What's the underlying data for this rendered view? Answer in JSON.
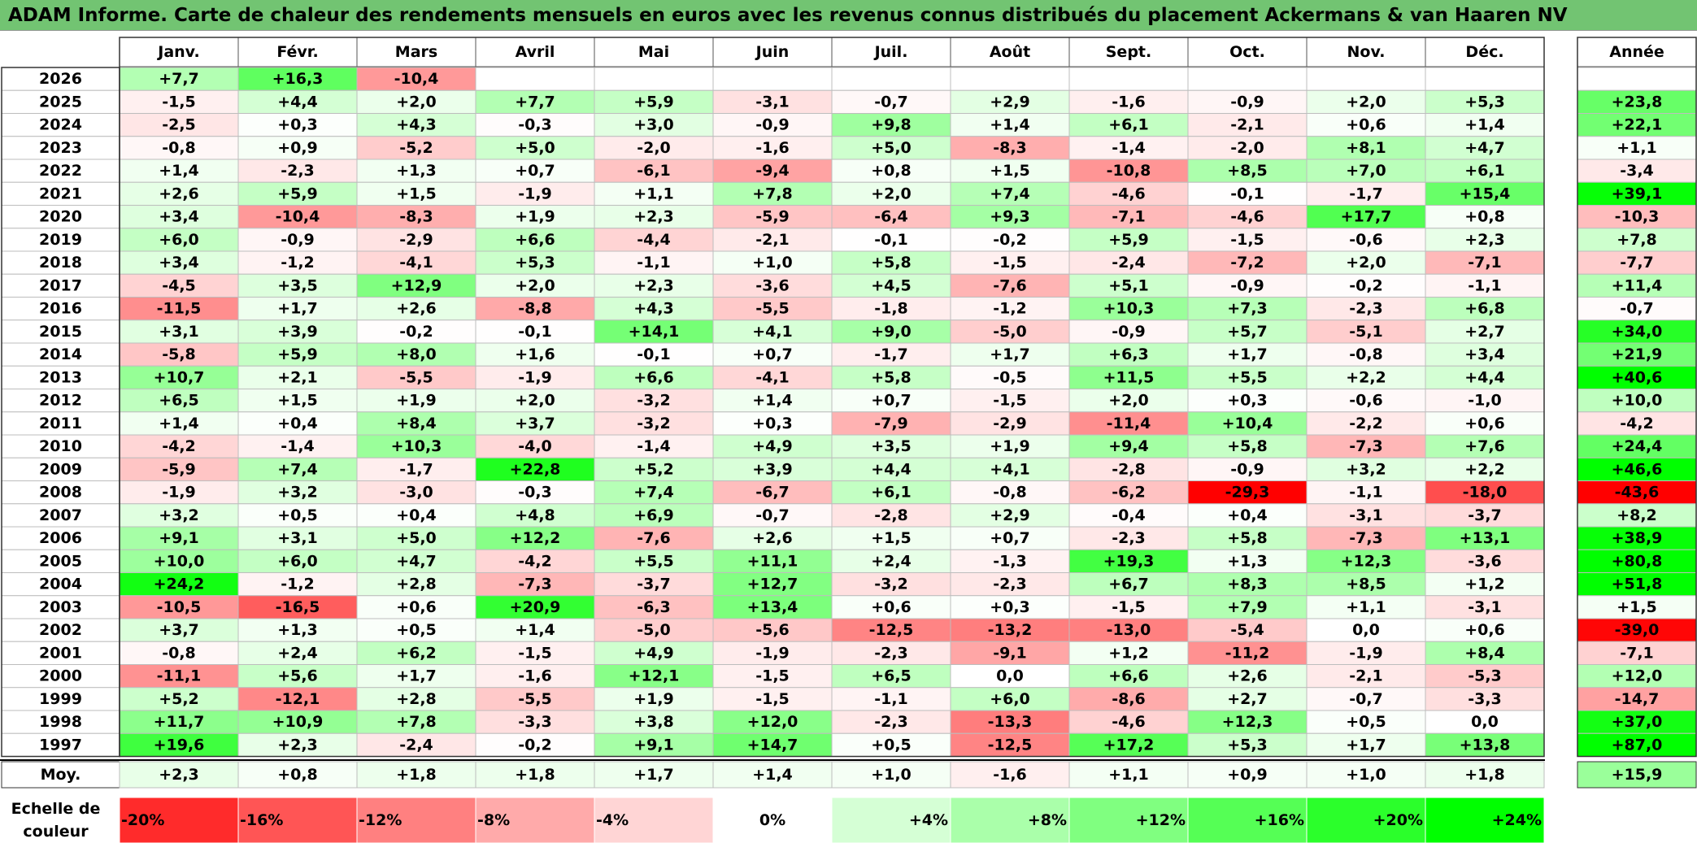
{
  "title": "ADAM Informe. Carte de chaleur des rendements mensuels en euros avec les revenus connus distribués du placement Ackermans & van Haaren NV",
  "chart_data": {
    "type": "heatmap",
    "title": "ADAM Informe. Carte de chaleur des rendements mensuels en euros avec les revenus connus distribués du placement Ackermans & van Haaren NV",
    "months": [
      "Janv.",
      "Févr.",
      "Mars",
      "Avril",
      "Mai",
      "Juin",
      "Juil.",
      "Août",
      "Sept.",
      "Oct.",
      "Nov.",
      "Déc."
    ],
    "year_header": "Année",
    "rows": [
      {
        "year": "2026",
        "values": [
          "+7,7",
          "+16,3",
          "-10,4",
          null,
          null,
          null,
          null,
          null,
          null,
          null,
          null,
          null
        ],
        "annual": null
      },
      {
        "year": "2025",
        "values": [
          "-1,5",
          "+4,4",
          "+2,0",
          "+7,7",
          "+5,9",
          "-3,1",
          "-0,7",
          "+2,9",
          "-1,6",
          "-0,9",
          "+2,0",
          "+5,3"
        ],
        "annual": "+23,8"
      },
      {
        "year": "2024",
        "values": [
          "-2,5",
          "+0,3",
          "+4,3",
          "-0,3",
          "+3,0",
          "-0,9",
          "+9,8",
          "+1,4",
          "+6,1",
          "-2,1",
          "+0,6",
          "+1,4"
        ],
        "annual": "+22,1"
      },
      {
        "year": "2023",
        "values": [
          "-0,8",
          "+0,9",
          "-5,2",
          "+5,0",
          "-2,0",
          "-1,6",
          "+5,0",
          "-8,3",
          "-1,4",
          "-2,0",
          "+8,1",
          "+4,7"
        ],
        "annual": "+1,1"
      },
      {
        "year": "2022",
        "values": [
          "+1,4",
          "-2,3",
          "+1,3",
          "+0,7",
          "-6,1",
          "-9,4",
          "+0,8",
          "+1,5",
          "-10,8",
          "+8,5",
          "+7,0",
          "+6,1"
        ],
        "annual": "-3,4"
      },
      {
        "year": "2021",
        "values": [
          "+2,6",
          "+5,9",
          "+1,5",
          "-1,9",
          "+1,1",
          "+7,8",
          "+2,0",
          "+7,4",
          "-4,6",
          "-0,1",
          "-1,7",
          "+15,4"
        ],
        "annual": "+39,1"
      },
      {
        "year": "2020",
        "values": [
          "+3,4",
          "-10,4",
          "-8,3",
          "+1,9",
          "+2,3",
          "-5,9",
          "-6,4",
          "+9,3",
          "-7,1",
          "-4,6",
          "+17,7",
          "+0,8"
        ],
        "annual": "-10,3"
      },
      {
        "year": "2019",
        "values": [
          "+6,0",
          "-0,9",
          "-2,9",
          "+6,6",
          "-4,4",
          "-2,1",
          "-0,1",
          "-0,2",
          "+5,9",
          "-1,5",
          "-0,6",
          "+2,3"
        ],
        "annual": "+7,8"
      },
      {
        "year": "2018",
        "values": [
          "+3,4",
          "-1,2",
          "-4,1",
          "+5,3",
          "-1,1",
          "+1,0",
          "+5,8",
          "-1,5",
          "-2,4",
          "-7,2",
          "+2,0",
          "-7,1"
        ],
        "annual": "-7,7"
      },
      {
        "year": "2017",
        "values": [
          "-4,5",
          "+3,5",
          "+12,9",
          "+2,0",
          "+2,3",
          "-3,6",
          "+4,5",
          "-7,6",
          "+5,1",
          "-0,9",
          "-0,2",
          "-1,1"
        ],
        "annual": "+11,4"
      },
      {
        "year": "2016",
        "values": [
          "-11,5",
          "+1,7",
          "+2,6",
          "-8,8",
          "+4,3",
          "-5,5",
          "-1,8",
          "-1,2",
          "+10,3",
          "+7,3",
          "-2,3",
          "+6,8"
        ],
        "annual": "-0,7"
      },
      {
        "year": "2015",
        "values": [
          "+3,1",
          "+3,9",
          "-0,2",
          "-0,1",
          "+14,1",
          "+4,1",
          "+9,0",
          "-5,0",
          "-0,9",
          "+5,7",
          "-5,1",
          "+2,7"
        ],
        "annual": "+34,0"
      },
      {
        "year": "2014",
        "values": [
          "-5,8",
          "+5,9",
          "+8,0",
          "+1,6",
          "-0,1",
          "+0,7",
          "-1,7",
          "+1,7",
          "+6,3",
          "+1,7",
          "-0,8",
          "+3,4"
        ],
        "annual": "+21,9"
      },
      {
        "year": "2013",
        "values": [
          "+10,7",
          "+2,1",
          "-5,5",
          "-1,9",
          "+6,6",
          "-4,1",
          "+5,8",
          "-0,5",
          "+11,5",
          "+5,5",
          "+2,2",
          "+4,4"
        ],
        "annual": "+40,6"
      },
      {
        "year": "2012",
        "values": [
          "+6,5",
          "+1,5",
          "+1,9",
          "+2,0",
          "-3,2",
          "+1,4",
          "+0,7",
          "-1,5",
          "+2,0",
          "+0,3",
          "-0,6",
          "-1,0"
        ],
        "annual": "+10,0"
      },
      {
        "year": "2011",
        "values": [
          "+1,4",
          "+0,4",
          "+8,4",
          "+3,7",
          "-3,2",
          "+0,3",
          "-7,9",
          "-2,9",
          "-11,4",
          "+10,4",
          "-2,2",
          "+0,6"
        ],
        "annual": "-4,2"
      },
      {
        "year": "2010",
        "values": [
          "-4,2",
          "-1,4",
          "+10,3",
          "-4,0",
          "-1,4",
          "+4,9",
          "+3,5",
          "+1,9",
          "+9,4",
          "+5,8",
          "-7,3",
          "+7,6"
        ],
        "annual": "+24,4"
      },
      {
        "year": "2009",
        "values": [
          "-5,9",
          "+7,4",
          "-1,7",
          "+22,8",
          "+5,2",
          "+3,9",
          "+4,4",
          "+4,1",
          "-2,8",
          "-0,9",
          "+3,2",
          "+2,2"
        ],
        "annual": "+46,6"
      },
      {
        "year": "2008",
        "values": [
          "-1,9",
          "+3,2",
          "-3,0",
          "-0,3",
          "+7,4",
          "-6,7",
          "+6,1",
          "-0,8",
          "-6,2",
          "-29,3",
          "-1,1",
          "-18,0"
        ],
        "annual": "-43,6"
      },
      {
        "year": "2007",
        "values": [
          "+3,2",
          "+0,5",
          "+0,4",
          "+4,8",
          "+6,9",
          "-0,7",
          "-2,8",
          "+2,9",
          "-0,4",
          "+0,4",
          "-3,1",
          "-3,7"
        ],
        "annual": "+8,2"
      },
      {
        "year": "2006",
        "values": [
          "+9,1",
          "+3,1",
          "+5,0",
          "+12,2",
          "-7,6",
          "+2,6",
          "+1,5",
          "+0,7",
          "-2,3",
          "+5,8",
          "-7,3",
          "+13,1"
        ],
        "annual": "+38,9"
      },
      {
        "year": "2005",
        "values": [
          "+10,0",
          "+6,0",
          "+4,7",
          "-4,2",
          "+5,5",
          "+11,1",
          "+2,4",
          "-1,3",
          "+19,3",
          "+1,3",
          "+12,3",
          "-3,6"
        ],
        "annual": "+80,8"
      },
      {
        "year": "2004",
        "values": [
          "+24,2",
          "-1,2",
          "+2,8",
          "-7,3",
          "-3,7",
          "+12,7",
          "-3,2",
          "-2,3",
          "+6,7",
          "+8,3",
          "+8,5",
          "+1,2"
        ],
        "annual": "+51,8"
      },
      {
        "year": "2003",
        "values": [
          "-10,5",
          "-16,5",
          "+0,6",
          "+20,9",
          "-6,3",
          "+13,4",
          "+0,6",
          "+0,3",
          "-1,5",
          "+7,9",
          "+1,1",
          "-3,1"
        ],
        "annual": "+1,5"
      },
      {
        "year": "2002",
        "values": [
          "+3,7",
          "+1,3",
          "+0,5",
          "+1,4",
          "-5,0",
          "-5,6",
          "-12,5",
          "-13,2",
          "-13,0",
          "-5,4",
          "0,0",
          "+0,6"
        ],
        "annual": "-39,0"
      },
      {
        "year": "2001",
        "values": [
          "-0,8",
          "+2,4",
          "+6,2",
          "-1,5",
          "+4,9",
          "-1,9",
          "-2,3",
          "-9,1",
          "+1,2",
          "-11,2",
          "-1,9",
          "+8,4"
        ],
        "annual": "-7,1"
      },
      {
        "year": "2000",
        "values": [
          "-11,1",
          "+5,6",
          "+1,7",
          "-1,6",
          "+12,1",
          "-1,5",
          "+6,5",
          "0,0",
          "+6,6",
          "+2,6",
          "-2,1",
          "-5,3"
        ],
        "annual": "+12,0"
      },
      {
        "year": "1999",
        "values": [
          "+5,2",
          "-12,1",
          "+2,8",
          "-5,5",
          "+1,9",
          "-1,5",
          "-1,1",
          "+6,0",
          "-8,6",
          "+2,7",
          "-0,7",
          "-3,3"
        ],
        "annual": "-14,7"
      },
      {
        "year": "1998",
        "values": [
          "+11,7",
          "+10,9",
          "+7,8",
          "-3,3",
          "+3,8",
          "+12,0",
          "-2,3",
          "-13,3",
          "-4,6",
          "+12,3",
          "+0,5",
          "0,0"
        ],
        "annual": "+37,0"
      },
      {
        "year": "1997",
        "values": [
          "+19,6",
          "+2,3",
          "-2,4",
          "-0,2",
          "+9,1",
          "+14,7",
          "+0,5",
          "-12,5",
          "+17,2",
          "+5,3",
          "+1,7",
          "+13,8"
        ],
        "annual": "+87,0"
      }
    ],
    "average": {
      "label": "Moy.",
      "values": [
        "+2,3",
        "+0,8",
        "+1,8",
        "+1,8",
        "+1,7",
        "+1,4",
        "+1,0",
        "-1,6",
        "+1,1",
        "+0,9",
        "+1,0",
        "+1,8"
      ],
      "annual": "+15,9"
    },
    "color_scale": {
      "label_line1": "Echelle de",
      "label_line2": "couleur",
      "steps": [
        {
          "label": "-20%",
          "value": -20
        },
        {
          "label": "-16%",
          "value": -16
        },
        {
          "label": "-12%",
          "value": -12
        },
        {
          "label": "-8%",
          "value": -8
        },
        {
          "label": "-4%",
          "value": -4
        },
        {
          "label": "0%",
          "value": 0
        },
        {
          "label": "+4%",
          "value": 4
        },
        {
          "label": "+8%",
          "value": 8
        },
        {
          "label": "+12%",
          "value": 12
        },
        {
          "label": "+16%",
          "value": 16
        },
        {
          "label": "+20%",
          "value": 20
        },
        {
          "label": "+24%",
          "value": 24
        }
      ]
    },
    "colors": {
      "negative_max": "#ff0000",
      "neutral": "#ffffff",
      "positive_max": "#00ff00",
      "title_bg": "#72c472"
    }
  }
}
